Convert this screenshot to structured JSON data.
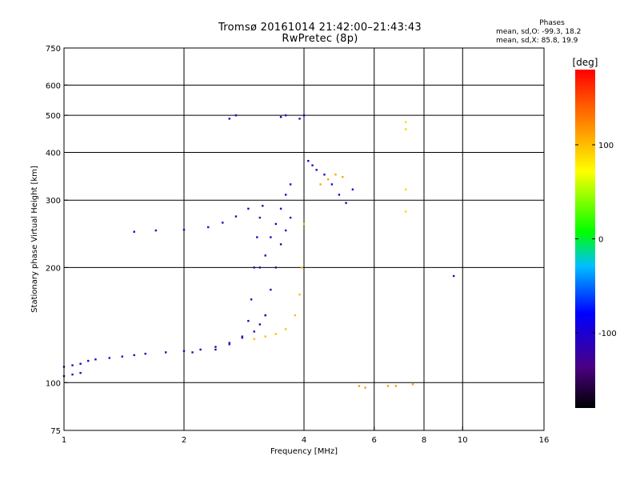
{
  "chart_data": {
    "type": "scatter",
    "title": "Tromsø 20161014 21:42:00–21:43:43",
    "subtitle": "RwPretec (8p)",
    "stats_title": "Phases",
    "stats_lines": [
      "mean, sd,O: -99.3, 18.2",
      "mean, sd,X:  85.8, 19.9"
    ],
    "xlabel": "Frequency [MHz]",
    "ylabel": "Stationary phase Virtual Height [km]",
    "x_scale": "log",
    "y_scale": "log",
    "xlim": [
      1,
      16
    ],
    "ylim": [
      75,
      750
    ],
    "x_ticks": [
      1,
      2,
      4,
      6,
      8,
      10,
      16
    ],
    "x_tick_labels": [
      "1",
      "2",
      "4",
      "6",
      "8",
      "10",
      "16"
    ],
    "y_ticks": [
      75,
      100,
      200,
      300,
      400,
      500,
      600,
      750
    ],
    "y_tick_labels": [
      "75",
      "100",
      "200",
      "300",
      "400",
      "500",
      "600",
      "750"
    ],
    "grid": true,
    "colorbar": {
      "label": "[deg]",
      "range": [
        -180,
        180
      ],
      "ticks": [
        -100,
        0,
        100
      ],
      "tick_labels": [
        "-100",
        "0",
        "100"
      ]
    },
    "series": [
      {
        "values": [
          [
            1.0,
            110
          ],
          [
            1.05,
            111
          ],
          [
            1.1,
            112
          ],
          [
            1.15,
            114
          ],
          [
            1.2,
            115
          ],
          [
            1.3,
            116
          ],
          [
            1.4,
            117
          ],
          [
            1.5,
            118
          ],
          [
            1.6,
            119
          ],
          [
            1.8,
            120
          ],
          [
            2.0,
            121
          ],
          [
            2.2,
            122
          ],
          [
            2.4,
            124
          ],
          [
            2.6,
            127
          ],
          [
            2.8,
            131
          ],
          [
            3.0,
            136
          ],
          [
            3.1,
            142
          ],
          [
            3.2,
            150
          ]
        ],
        "color_value": -110
      },
      {
        "values": [
          [
            1.0,
            104
          ],
          [
            1.05,
            105
          ],
          [
            1.1,
            106
          ]
        ],
        "color_value": -115
      },
      {
        "values": [
          [
            1.5,
            248
          ],
          [
            1.7,
            250
          ],
          [
            2.0,
            251
          ],
          [
            2.3,
            255
          ],
          [
            2.5,
            262
          ],
          [
            2.7,
            272
          ],
          [
            2.9,
            285
          ]
        ],
        "color_value": -105
      },
      {
        "values": [
          [
            2.1,
            120
          ],
          [
            2.4,
            122
          ],
          [
            2.6,
            126
          ],
          [
            2.8,
            132
          ],
          [
            2.9,
            145
          ],
          [
            2.95,
            165
          ],
          [
            3.0,
            200
          ],
          [
            3.05,
            240
          ],
          [
            3.1,
            270
          ],
          [
            3.15,
            290
          ]
        ],
        "color_value": -120
      },
      {
        "values": [
          [
            3.1,
            200
          ],
          [
            3.2,
            215
          ],
          [
            3.3,
            240
          ],
          [
            3.4,
            260
          ],
          [
            3.5,
            285
          ],
          [
            3.6,
            310
          ],
          [
            3.7,
            330
          ]
        ],
        "color_value": -105
      },
      {
        "values": [
          [
            3.2,
            150
          ],
          [
            3.3,
            175
          ],
          [
            3.4,
            200
          ],
          [
            3.5,
            230
          ],
          [
            3.6,
            250
          ],
          [
            3.7,
            270
          ]
        ],
        "color_value": -115
      },
      {
        "values": [
          [
            3.0,
            130
          ],
          [
            3.2,
            132
          ],
          [
            3.4,
            134
          ],
          [
            3.6,
            138
          ],
          [
            3.8,
            150
          ],
          [
            3.9,
            170
          ],
          [
            3.95,
            200
          ],
          [
            4.0,
            260
          ]
        ],
        "color_value": 100
      },
      {
        "values": [
          [
            4.1,
            380
          ],
          [
            4.2,
            370
          ],
          [
            4.3,
            360
          ],
          [
            4.5,
            350
          ],
          [
            4.7,
            330
          ],
          [
            4.9,
            310
          ],
          [
            5.1,
            295
          ],
          [
            5.3,
            320
          ]
        ],
        "color_value": -105
      },
      {
        "values": [
          [
            4.4,
            330
          ],
          [
            4.6,
            340
          ],
          [
            4.8,
            350
          ],
          [
            5.0,
            345
          ]
        ],
        "color_value": 110
      },
      {
        "values": [
          [
            5.5,
            98
          ],
          [
            5.7,
            97
          ],
          [
            6.5,
            98
          ],
          [
            6.8,
            98
          ],
          [
            7.5,
            99
          ]
        ],
        "color_value": 115
      },
      {
        "values": [
          [
            7.2,
            480
          ],
          [
            7.2,
            460
          ],
          [
            7.2,
            320
          ],
          [
            7.2,
            280
          ]
        ],
        "color_value": 90
      },
      {
        "values": [
          [
            9.5,
            190
          ]
        ],
        "color_value": -110
      },
      {
        "values": [
          [
            2.6,
            490
          ],
          [
            2.7,
            500
          ],
          [
            3.5,
            495
          ],
          [
            3.6,
            500
          ],
          [
            3.9,
            490
          ],
          [
            4.0,
            500
          ]
        ],
        "color_value": -105
      }
    ]
  }
}
